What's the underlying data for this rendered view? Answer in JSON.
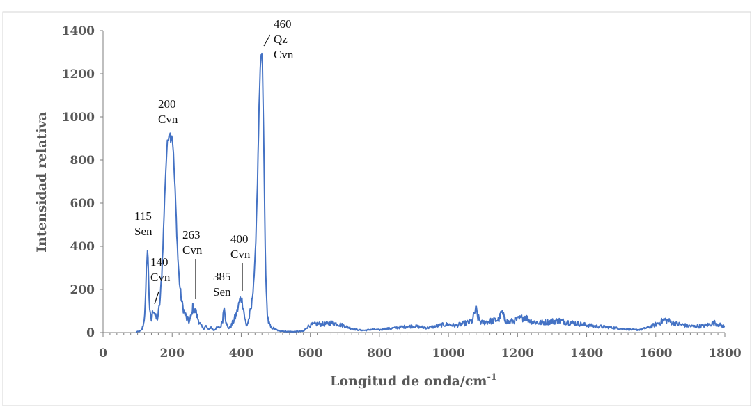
{
  "chart_data": {
    "type": "line",
    "title": "",
    "xlabel": "Longitud de onda/cm",
    "xlabel_superscript": "-1",
    "ylabel": "Intensidad relativa",
    "xlim": [
      0,
      1800
    ],
    "ylim": [
      0,
      1400
    ],
    "xticks": [
      0,
      200,
      400,
      600,
      800,
      1000,
      1200,
      1400,
      1600,
      1800
    ],
    "yticks": [
      0,
      200,
      400,
      600,
      800,
      1000,
      1200,
      1400
    ],
    "grid": false,
    "legend": "none",
    "line_color": "#4472c4",
    "series": [
      {
        "x": [
          95,
          105,
          112,
          118,
          123,
          126,
          129,
          131,
          133,
          136,
          140,
          145,
          149,
          152,
          156,
          160,
          165,
          170,
          175,
          180,
          185,
          190,
          193,
          196,
          199,
          202,
          205,
          209,
          213,
          217,
          222,
          228,
          235,
          242,
          250,
          256,
          260,
          264,
          268,
          272,
          276,
          282,
          290,
          298,
          305,
          312,
          320,
          330,
          340,
          346,
          351,
          354,
          357,
          361,
          366,
          372,
          380,
          388,
          394,
          398,
          402,
          406,
          410,
          415,
          420,
          430,
          440,
          447,
          452,
          456,
          459,
          461,
          463,
          466,
          469,
          473,
          478,
          485,
          495,
          505,
          515,
          525,
          535,
          545,
          560,
          580,
          590,
          600,
          620,
          640,
          660,
          680,
          700,
          720,
          740,
          760,
          780,
          800,
          820,
          840,
          860,
          880,
          900,
          920,
          940,
          960,
          980,
          1000,
          1020,
          1040,
          1060,
          1070,
          1075,
          1080,
          1085,
          1095,
          1110,
          1130,
          1145,
          1155,
          1160,
          1165,
          1175,
          1190,
          1210,
          1220,
          1230,
          1245,
          1260,
          1280,
          1300,
          1320,
          1340,
          1360,
          1380,
          1400,
          1420,
          1440,
          1460,
          1480,
          1500,
          1520,
          1540,
          1560,
          1580,
          1600,
          1615,
          1625,
          1635,
          1650,
          1670,
          1690,
          1710,
          1730,
          1750,
          1770,
          1790,
          1800
        ],
        "y": [
          0,
          4,
          12,
          45,
          140,
          320,
          390,
          300,
          180,
          80,
          55,
          110,
          95,
          70,
          60,
          85,
          150,
          270,
          470,
          700,
          860,
          920,
          930,
          900,
          920,
          880,
          780,
          640,
          480,
          330,
          220,
          140,
          95,
          65,
          50,
          80,
          120,
          95,
          100,
          75,
          60,
          35,
          18,
          30,
          12,
          25,
          10,
          22,
          25,
          60,
          130,
          80,
          40,
          25,
          20,
          35,
          60,
          95,
          140,
          160,
          150,
          120,
          70,
          30,
          50,
          120,
          320,
          700,
          1050,
          1250,
          1305,
          1260,
          1100,
          800,
          420,
          150,
          55,
          25,
          18,
          10,
          6,
          4,
          3,
          2,
          3,
          4,
          25,
          35,
          40,
          38,
          45,
          40,
          30,
          18,
          12,
          10,
          15,
          12,
          18,
          20,
          25,
          28,
          30,
          25,
          22,
          28,
          35,
          38,
          32,
          40,
          48,
          55,
          90,
          110,
          70,
          45,
          50,
          55,
          60,
          95,
          70,
          55,
          48,
          55,
          65,
          75,
          62,
          50,
          45,
          48,
          52,
          55,
          50,
          45,
          40,
          35,
          30,
          28,
          25,
          22,
          18,
          15,
          12,
          15,
          25,
          38,
          50,
          60,
          55,
          45,
          38,
          32,
          28,
          30,
          35,
          45,
          32,
          28
        ]
      }
    ],
    "annotations": [
      {
        "lines": [
          "115",
          "Sen"
        ]
      },
      {
        "lines": [
          "140",
          "Cvn"
        ]
      },
      {
        "lines": [
          "200",
          "Cvn"
        ]
      },
      {
        "lines": [
          "263",
          "Cvn"
        ]
      },
      {
        "lines": [
          "385",
          "Sen"
        ]
      },
      {
        "lines": [
          "400",
          "Cvn"
        ]
      },
      {
        "lines": [
          "460",
          "Qz",
          "Cvn"
        ]
      }
    ]
  }
}
